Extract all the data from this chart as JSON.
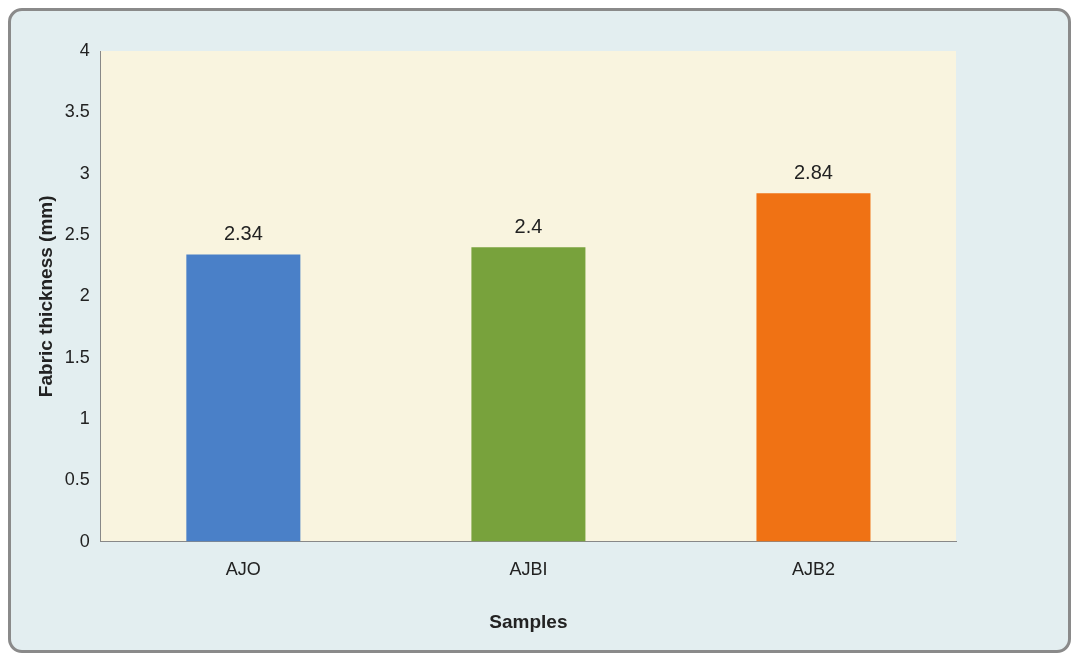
{
  "chart_data": {
    "type": "bar",
    "categories": [
      "AJO",
      "AJBI",
      "AJB2"
    ],
    "values": [
      2.34,
      2.4,
      2.84
    ],
    "colors": [
      "#4a80c8",
      "#78a23c",
      "#f07214"
    ],
    "xlabel": "Samples",
    "ylabel": "Fabric thickness (mm)",
    "ylim": [
      0,
      4
    ],
    "yticks": [
      0,
      0.5,
      1,
      1.5,
      2,
      2.5,
      3,
      3.5,
      4
    ],
    "grid": false,
    "legend": false,
    "data_labels": true
  }
}
